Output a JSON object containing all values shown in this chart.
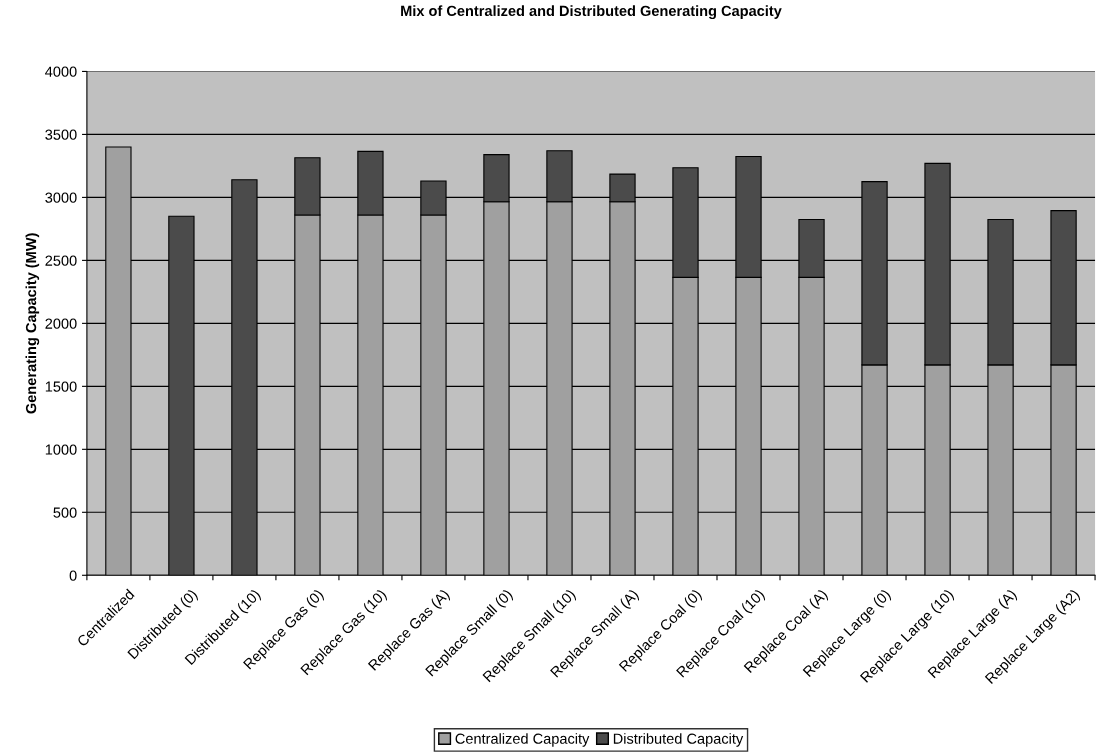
{
  "chart_data": {
    "type": "bar",
    "title": "Mix of Centralized and Distributed Generating Capacity",
    "ylabel": "Generating Capacity (MW)",
    "categories": [
      "Centralized",
      "Distributed (0)",
      "Distributed (10)",
      "Replace Gas (0)",
      "Replace Gas (10)",
      "Replace Gas (A)",
      "Replace Small (0)",
      "Replace Small (10)",
      "Replace Small (A)",
      "Replace Coal (0)",
      "Replace Coal (10)",
      "Replace Coal (A)",
      "Replace Large (0)",
      "Replace Large (10)",
      "Replace Large (A)",
      "Replace Large (A2)"
    ],
    "series": [
      {
        "name": "Centralized Capacity",
        "color": "#a0a0a0",
        "values": [
          3400,
          0,
          0,
          2860,
          2860,
          2860,
          2965,
          2965,
          2965,
          2365,
          2365,
          2365,
          1670,
          1670,
          1670,
          1670
        ]
      },
      {
        "name": "Distributed Capacity",
        "color": "#4b4b4b",
        "values": [
          0,
          2850,
          3140,
          455,
          505,
          270,
          375,
          405,
          220,
          870,
          960,
          460,
          1455,
          1600,
          1155,
          1225
        ]
      }
    ],
    "stacked": true,
    "ylim": [
      0,
      4000
    ],
    "yticks": [
      0,
      500,
      1000,
      1500,
      2000,
      2500,
      3000,
      3500,
      4000
    ],
    "grid": "y",
    "legend": "bottom"
  }
}
